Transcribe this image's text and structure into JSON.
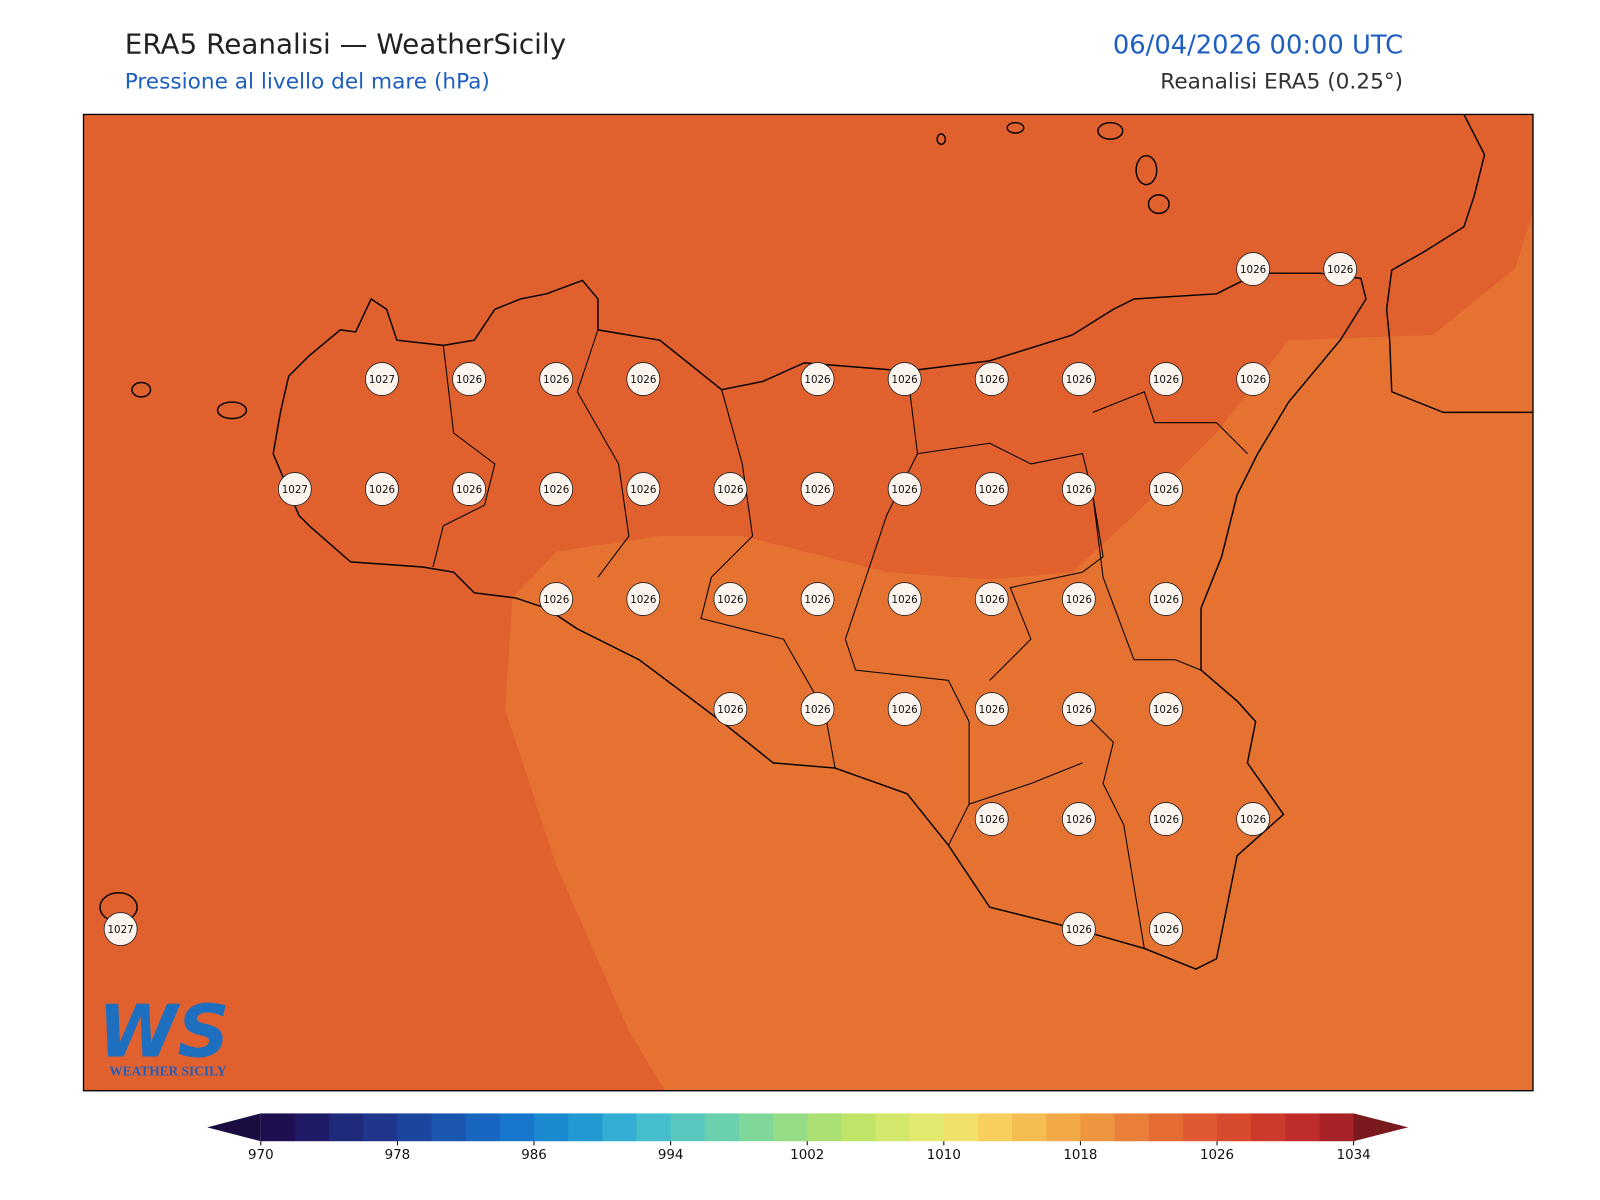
{
  "header": {
    "title": "ERA5 Reanalisi — WeatherSicily",
    "subtitle": "Pressione al livello del mare (hPa)",
    "time": "06/04/2026 00:00 UTC",
    "source": "Reanalisi ERA5 (0.25°)"
  },
  "map": {
    "pressure_labels": [
      [
        null,
        null,
        null,
        null,
        null,
        null,
        null,
        null,
        null,
        null,
        null,
        null,
        null,
        1026,
        1026
      ],
      [
        null,
        null,
        null,
        1027,
        1026,
        1026,
        1026,
        null,
        1026,
        1026,
        1026,
        1026,
        1026,
        1026,
        null
      ],
      [
        null,
        null,
        1027,
        1026,
        1026,
        1026,
        1026,
        1026,
        1026,
        1026,
        1026,
        1026,
        1026,
        null,
        null
      ],
      [
        null,
        null,
        null,
        null,
        null,
        1026,
        1026,
        1026,
        1026,
        1026,
        1026,
        1026,
        1026,
        null,
        null
      ],
      [
        null,
        null,
        null,
        null,
        null,
        null,
        null,
        1026,
        1026,
        1026,
        1026,
        1026,
        1026,
        null,
        null
      ],
      [
        null,
        null,
        null,
        null,
        null,
        null,
        null,
        null,
        null,
        null,
        1026,
        1026,
        1026,
        1026,
        null
      ],
      [
        1027,
        null,
        null,
        null,
        null,
        null,
        null,
        null,
        null,
        null,
        null,
        1026,
        1026,
        null,
        null
      ]
    ]
  },
  "logo": {
    "mark": "WS",
    "name": "WEATHER SICILY"
  },
  "colorbar": {
    "lim": [
      970,
      1034
    ],
    "ticks": [
      970,
      978,
      986,
      994,
      1002,
      1010,
      1018,
      1026,
      1034
    ],
    "colors": [
      "#1e1050",
      "#1f1a66",
      "#202a7a",
      "#1f368c",
      "#1c459f",
      "#1a55b0",
      "#1866c0",
      "#1677cc",
      "#1a89d0",
      "#2399d2",
      "#33add3",
      "#45bdcc",
      "#58c8bd",
      "#6bd0ad",
      "#80d79a",
      "#96dc86",
      "#abe074",
      "#c0e468",
      "#d3e86a",
      "#e3e96e",
      "#f1e06a",
      "#f7cf5e",
      "#f5bd52",
      "#f2a948",
      "#ee9540",
      "#e9803a",
      "#e46c34",
      "#df5a30",
      "#d84a2d",
      "#cc3a2c",
      "#bf2d2b",
      "#a82328"
    ],
    "under": "#1a0c40",
    "over": "#7a1a1e"
  }
}
